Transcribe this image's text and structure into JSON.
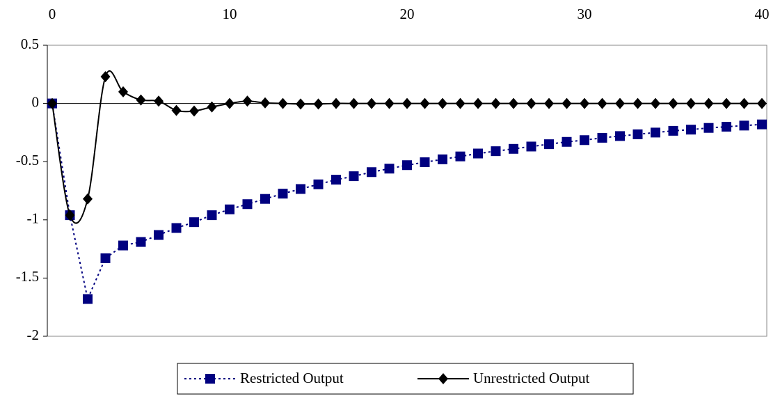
{
  "chart_data": {
    "type": "line",
    "x": [
      0,
      1,
      2,
      3,
      4,
      5,
      6,
      7,
      8,
      9,
      10,
      11,
      12,
      13,
      14,
      15,
      16,
      17,
      18,
      19,
      20,
      21,
      22,
      23,
      24,
      25,
      26,
      27,
      28,
      29,
      30,
      31,
      32,
      33,
      34,
      35,
      36,
      37,
      38,
      39,
      40
    ],
    "series": [
      {
        "name": "Restricted Output",
        "color": "#000080",
        "marker": "square",
        "dash": true,
        "values": [
          0,
          -0.96,
          -1.68,
          -1.33,
          -1.22,
          -1.19,
          -1.13,
          -1.07,
          -1.02,
          -0.96,
          -0.91,
          -0.865,
          -0.82,
          -0.775,
          -0.735,
          -0.695,
          -0.655,
          -0.625,
          -0.59,
          -0.56,
          -0.53,
          -0.505,
          -0.48,
          -0.455,
          -0.43,
          -0.41,
          -0.39,
          -0.37,
          -0.35,
          -0.33,
          -0.315,
          -0.295,
          -0.28,
          -0.265,
          -0.25,
          -0.235,
          -0.225,
          -0.21,
          -0.2,
          -0.19,
          -0.18
        ]
      },
      {
        "name": "Unrestricted Output",
        "color": "#000000",
        "marker": "diamond",
        "dash": false,
        "values": [
          0,
          -0.96,
          -0.82,
          0.23,
          0.1,
          0.03,
          0.02,
          -0.06,
          -0.065,
          -0.03,
          0,
          0.02,
          0.005,
          0,
          -0.005,
          -0.005,
          0,
          0,
          0,
          0,
          0,
          0,
          0,
          0,
          0,
          0,
          0,
          0,
          0,
          0,
          0,
          0,
          0,
          0,
          0,
          0,
          0,
          0,
          0,
          0,
          0
        ]
      }
    ],
    "xlim": [
      0,
      40
    ],
    "xticks": [
      0,
      10,
      20,
      30,
      40
    ],
    "ylim": [
      -2,
      0.5
    ],
    "yticks": [
      0.5,
      0,
      -0.5,
      -1,
      -1.5,
      -2
    ],
    "legend": "bottom"
  }
}
